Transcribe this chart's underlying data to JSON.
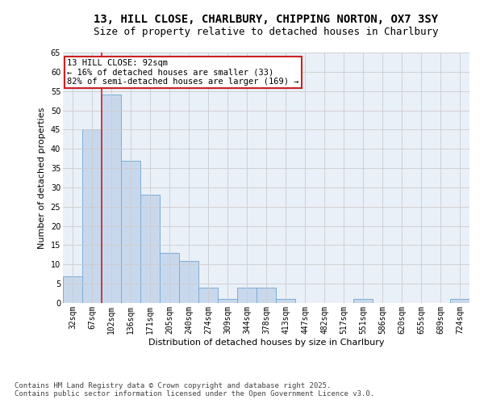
{
  "title_line1": "13, HILL CLOSE, CHARLBURY, CHIPPING NORTON, OX7 3SY",
  "title_line2": "Size of property relative to detached houses in Charlbury",
  "xlabel": "Distribution of detached houses by size in Charlbury",
  "ylabel": "Number of detached properties",
  "categories": [
    "32sqm",
    "67sqm",
    "102sqm",
    "136sqm",
    "171sqm",
    "205sqm",
    "240sqm",
    "274sqm",
    "309sqm",
    "344sqm",
    "378sqm",
    "413sqm",
    "447sqm",
    "482sqm",
    "517sqm",
    "551sqm",
    "586sqm",
    "620sqm",
    "655sqm",
    "689sqm",
    "724sqm"
  ],
  "values": [
    7,
    45,
    54,
    37,
    28,
    13,
    11,
    4,
    1,
    4,
    4,
    1,
    0,
    0,
    0,
    1,
    0,
    0,
    0,
    0,
    1
  ],
  "bar_color": "#c8d8ec",
  "bar_edge_color": "#7aadd4",
  "annotation_text": "13 HILL CLOSE: 92sqm\n← 16% of detached houses are smaller (33)\n82% of semi-detached houses are larger (169) →",
  "annotation_box_facecolor": "#ffffff",
  "annotation_box_edgecolor": "#cc2222",
  "property_line_color": "#cc2222",
  "ylim": [
    0,
    65
  ],
  "yticks": [
    0,
    5,
    10,
    15,
    20,
    25,
    30,
    35,
    40,
    45,
    50,
    55,
    60,
    65
  ],
  "grid_color": "#cccccc",
  "bg_color": "#eaf0f8",
  "footer": "Contains HM Land Registry data © Crown copyright and database right 2025.\nContains public sector information licensed under the Open Government Licence v3.0.",
  "title1_fontsize": 10,
  "title2_fontsize": 9,
  "axis_label_fontsize": 8,
  "tick_fontsize": 7,
  "annotation_fontsize": 7.5,
  "footer_fontsize": 6.5
}
